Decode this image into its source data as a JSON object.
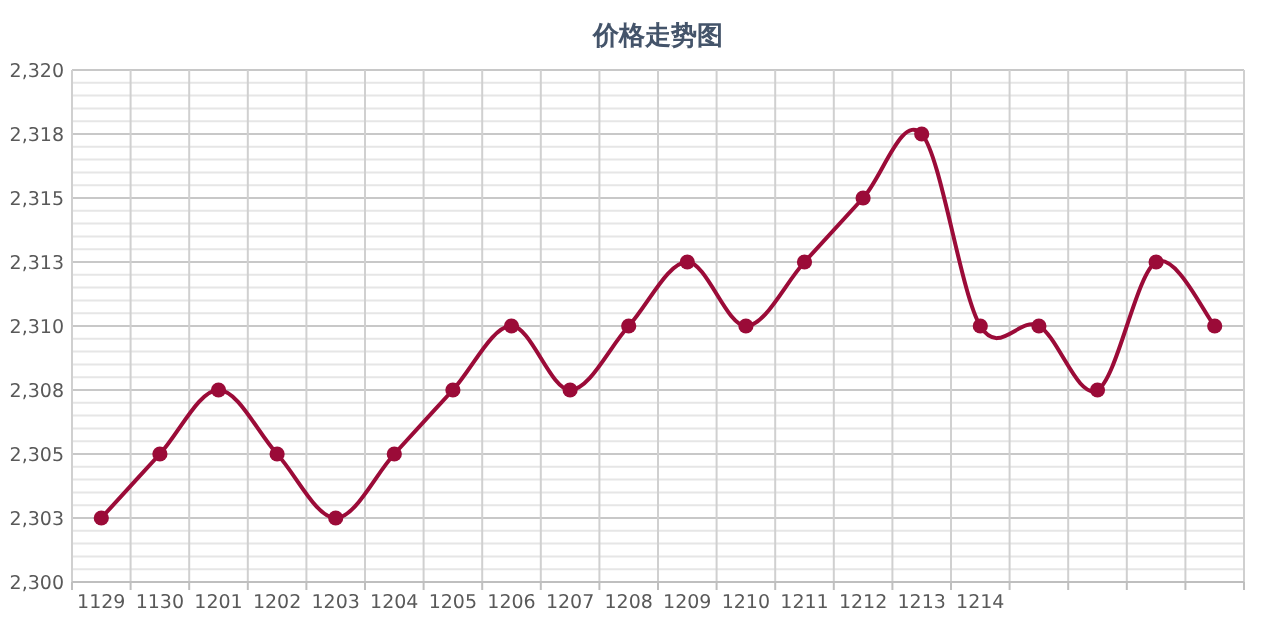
{
  "chart_data": {
    "type": "line",
    "title": "价格走势图",
    "categories": [
      "1129",
      "1130",
      "1201",
      "1202",
      "1203",
      "1204",
      "1205",
      "1206",
      "1207",
      "1208",
      "1209",
      "1210",
      "1211",
      "1212",
      "1213",
      "1214",
      null,
      null,
      null,
      null
    ],
    "series": [
      {
        "color": "#9b0b38",
        "values": [
          2302.5,
          2305,
          2307.5,
          2305,
          2302.5,
          2305,
          2307.5,
          2310,
          2307.5,
          2310,
          2312.5,
          2310,
          2312.5,
          2315,
          2317.5,
          2310,
          2310,
          2307.5,
          2312.5,
          2310
        ]
      }
    ],
    "ylim": [
      2300,
      2320
    ],
    "yticks": [
      {
        "value": 2300,
        "label": "2,300"
      },
      {
        "value": 2300.5,
        "label": null
      },
      {
        "value": 2301,
        "label": null
      },
      {
        "value": 2301.5,
        "label": null
      },
      {
        "value": 2302,
        "label": null
      },
      {
        "value": 2302.5,
        "label": "2,303"
      },
      {
        "value": 2303,
        "label": null
      },
      {
        "value": 2303.5,
        "label": null
      },
      {
        "value": 2304,
        "label": null
      },
      {
        "value": 2304.5,
        "label": null
      },
      {
        "value": 2305,
        "label": "2,305"
      },
      {
        "value": 2305.5,
        "label": null
      },
      {
        "value": 2306,
        "label": null
      },
      {
        "value": 2306.5,
        "label": null
      },
      {
        "value": 2307,
        "label": null
      },
      {
        "value": 2307.5,
        "label": "2,308"
      },
      {
        "value": 2308,
        "label": null
      },
      {
        "value": 2308.5,
        "label": null
      },
      {
        "value": 2309,
        "label": null
      },
      {
        "value": 2309.5,
        "label": null
      },
      {
        "value": 2310,
        "label": "2,310"
      },
      {
        "value": 2310.5,
        "label": null
      },
      {
        "value": 2311,
        "label": null
      },
      {
        "value": 2311.5,
        "label": null
      },
      {
        "value": 2312,
        "label": null
      },
      {
        "value": 2312.5,
        "label": "2,313"
      },
      {
        "value": 2313,
        "label": null
      },
      {
        "value": 2313.5,
        "label": null
      },
      {
        "value": 2314,
        "label": null
      },
      {
        "value": 2314.5,
        "label": null
      },
      {
        "value": 2315,
        "label": "2,315"
      },
      {
        "value": 2315.5,
        "label": null
      },
      {
        "value": 2316,
        "label": null
      },
      {
        "value": 2316.5,
        "label": null
      },
      {
        "value": 2317,
        "label": null
      },
      {
        "value": 2317.5,
        "label": "2,318"
      },
      {
        "value": 2318,
        "label": null
      },
      {
        "value": 2318.5,
        "label": null
      },
      {
        "value": 2319,
        "label": null
      },
      {
        "value": 2319.5,
        "label": null
      },
      {
        "value": 2320,
        "label": "2,320"
      }
    ],
    "grid": true,
    "marker": "circle",
    "line_style": "solid"
  }
}
